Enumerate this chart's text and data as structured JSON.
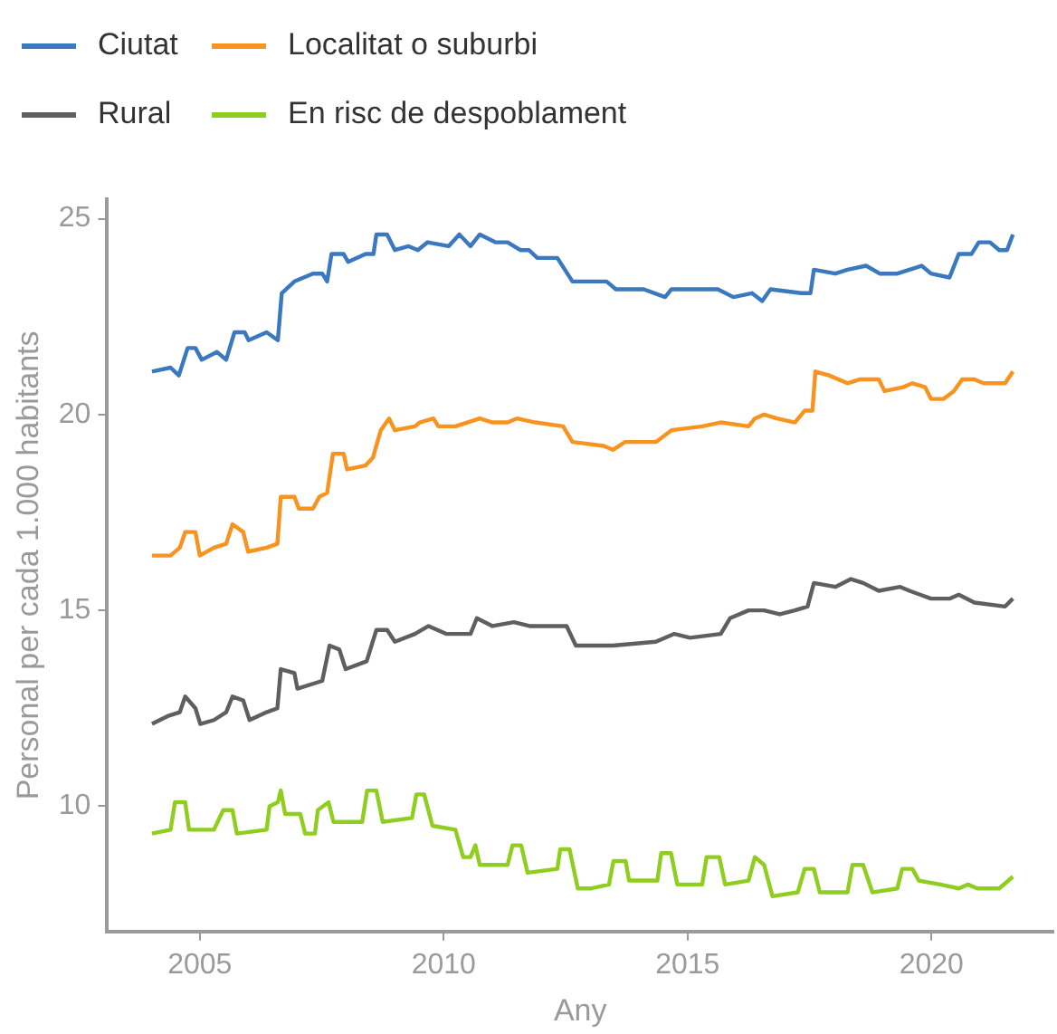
{
  "chart_data": {
    "type": "line",
    "xlabel": "Any",
    "ylabel": "Personal per cada 1.000 habitants",
    "legend": "top",
    "grid": false,
    "marker": "none",
    "xlim": [
      2003.1,
      2022.5
    ],
    "xticks": [
      2005,
      2010,
      2015,
      2020
    ],
    "ylim": [
      6.8,
      25.5
    ],
    "yticks": [
      10,
      15,
      20,
      25
    ],
    "series": [
      {
        "name": "Ciutat",
        "color": "#3a78bf",
        "x": [
          2004.02,
          2004.4,
          2004.57,
          2004.75,
          2004.91,
          2005.04,
          2005.35,
          2005.54,
          2005.71,
          2005.92,
          2006.0,
          2006.37,
          2006.6,
          2006.68,
          2006.94,
          2007.32,
          2007.51,
          2007.61,
          2007.7,
          2007.95,
          2008.04,
          2008.4,
          2008.56,
          2008.62,
          2008.84,
          2009.0,
          2009.28,
          2009.47,
          2009.67,
          2010.1,
          2010.32,
          2010.55,
          2010.74,
          2011.06,
          2011.31,
          2011.57,
          2011.75,
          2011.92,
          2012.33,
          2012.64,
          2013.34,
          2013.53,
          2014.1,
          2014.54,
          2014.67,
          2015.62,
          2015.94,
          2016.32,
          2016.53,
          2016.7,
          2017.33,
          2017.52,
          2017.59,
          2018.03,
          2018.28,
          2018.66,
          2018.94,
          2019.3,
          2019.55,
          2019.8,
          2019.99,
          2020.37,
          2020.56,
          2020.82,
          2020.97,
          2021.2,
          2021.39,
          2021.55,
          2021.67
        ],
        "values": [
          21.1,
          21.2,
          21.0,
          21.7,
          21.7,
          21.4,
          21.6,
          21.4,
          22.1,
          22.1,
          21.9,
          22.1,
          21.9,
          23.1,
          23.4,
          23.6,
          23.6,
          23.4,
          24.1,
          24.1,
          23.9,
          24.1,
          24.1,
          24.6,
          24.6,
          24.2,
          24.3,
          24.2,
          24.4,
          24.3,
          24.6,
          24.3,
          24.6,
          24.4,
          24.4,
          24.2,
          24.2,
          24.0,
          24.0,
          23.4,
          23.4,
          23.2,
          23.2,
          23.0,
          23.2,
          23.2,
          23.0,
          23.1,
          22.9,
          23.2,
          23.1,
          23.1,
          23.7,
          23.6,
          23.7,
          23.8,
          23.6,
          23.6,
          23.7,
          23.8,
          23.6,
          23.5,
          24.1,
          24.1,
          24.4,
          24.4,
          24.2,
          24.2,
          24.6
        ]
      },
      {
        "name": "Localitat o suburbi",
        "color": "#f7931e",
        "x": [
          2004.02,
          2004.4,
          2004.59,
          2004.7,
          2004.91,
          2005.0,
          2005.29,
          2005.54,
          2005.67,
          2005.89,
          2005.99,
          2006.37,
          2006.59,
          2006.66,
          2006.94,
          2007.03,
          2007.32,
          2007.45,
          2007.61,
          2007.73,
          2007.95,
          2008.02,
          2008.4,
          2008.55,
          2008.71,
          2008.88,
          2009.0,
          2009.41,
          2009.51,
          2009.79,
          2009.89,
          2010.24,
          2010.74,
          2011.0,
          2011.31,
          2011.5,
          2011.88,
          2012.45,
          2012.64,
          2013.28,
          2013.47,
          2013.72,
          2014.35,
          2014.67,
          2015.3,
          2015.68,
          2016.25,
          2016.38,
          2016.57,
          2016.83,
          2017.2,
          2017.4,
          2017.56,
          2017.62,
          2017.9,
          2018.28,
          2018.54,
          2018.92,
          2019.04,
          2019.42,
          2019.61,
          2019.87,
          2019.99,
          2020.25,
          2020.46,
          2020.63,
          2020.88,
          2021.07,
          2021.51,
          2021.67
        ],
        "values": [
          16.4,
          16.4,
          16.6,
          17.0,
          17.0,
          16.4,
          16.6,
          16.7,
          17.2,
          17.0,
          16.5,
          16.6,
          16.7,
          17.9,
          17.9,
          17.6,
          17.6,
          17.9,
          18.0,
          19.0,
          19.0,
          18.6,
          18.7,
          18.9,
          19.6,
          19.9,
          19.6,
          19.7,
          19.8,
          19.9,
          19.7,
          19.7,
          19.9,
          19.8,
          19.8,
          19.9,
          19.8,
          19.7,
          19.3,
          19.2,
          19.1,
          19.3,
          19.3,
          19.6,
          19.7,
          19.8,
          19.7,
          19.9,
          20.0,
          19.9,
          19.8,
          20.1,
          20.1,
          21.1,
          21.0,
          20.8,
          20.9,
          20.9,
          20.6,
          20.7,
          20.8,
          20.7,
          20.4,
          20.4,
          20.6,
          20.9,
          20.9,
          20.8,
          20.8,
          21.1
        ]
      },
      {
        "name": "Rural",
        "color": "#5f5f5f",
        "x": [
          2004.02,
          2004.34,
          2004.59,
          2004.7,
          2004.91,
          2005.01,
          2005.29,
          2005.54,
          2005.67,
          2005.89,
          2006.02,
          2006.37,
          2006.59,
          2006.66,
          2006.94,
          2007.0,
          2007.51,
          2007.66,
          2007.86,
          2007.99,
          2008.42,
          2008.62,
          2008.84,
          2009.0,
          2009.41,
          2009.69,
          2010.05,
          2010.3,
          2010.55,
          2010.68,
          2011.0,
          2011.44,
          2011.76,
          2012.01,
          2012.52,
          2012.71,
          2013.47,
          2014.35,
          2014.73,
          2015.05,
          2015.68,
          2015.87,
          2016.25,
          2016.57,
          2016.89,
          2017.2,
          2017.46,
          2017.59,
          2018.03,
          2018.35,
          2018.6,
          2018.92,
          2019.36,
          2019.55,
          2019.99,
          2020.37,
          2020.56,
          2020.88,
          2021.51,
          2021.67
        ],
        "values": [
          12.1,
          12.3,
          12.4,
          12.8,
          12.5,
          12.1,
          12.2,
          12.4,
          12.8,
          12.7,
          12.2,
          12.4,
          12.5,
          13.5,
          13.4,
          13.0,
          13.2,
          14.1,
          14.0,
          13.5,
          13.7,
          14.5,
          14.5,
          14.2,
          14.4,
          14.6,
          14.4,
          14.4,
          14.4,
          14.8,
          14.6,
          14.7,
          14.6,
          14.6,
          14.6,
          14.1,
          14.1,
          14.2,
          14.4,
          14.3,
          14.4,
          14.8,
          15.0,
          15.0,
          14.9,
          15.0,
          15.1,
          15.7,
          15.6,
          15.8,
          15.7,
          15.5,
          15.6,
          15.5,
          15.3,
          15.3,
          15.4,
          15.2,
          15.1,
          15.3
        ]
      },
      {
        "name": "En risc de despoblament",
        "color": "#8fce1e",
        "x": [
          2004.02,
          2004.4,
          2004.49,
          2004.7,
          2004.78,
          2005.29,
          2005.48,
          2005.67,
          2005.76,
          2006.37,
          2006.43,
          2006.6,
          2006.66,
          2006.75,
          2007.06,
          2007.16,
          2007.36,
          2007.42,
          2007.64,
          2007.74,
          2008.33,
          2008.43,
          2008.62,
          2008.75,
          2009.35,
          2009.44,
          2009.6,
          2009.77,
          2010.24,
          2010.4,
          2010.55,
          2010.65,
          2010.74,
          2011.31,
          2011.41,
          2011.59,
          2011.72,
          2012.33,
          2012.39,
          2012.58,
          2012.75,
          2013.03,
          2013.39,
          2013.48,
          2013.73,
          2013.8,
          2014.38,
          2014.46,
          2014.66,
          2014.79,
          2015.3,
          2015.39,
          2015.65,
          2015.77,
          2016.25,
          2016.38,
          2016.57,
          2016.74,
          2017.26,
          2017.4,
          2017.59,
          2017.71,
          2018.28,
          2018.38,
          2018.6,
          2018.79,
          2019.3,
          2019.4,
          2019.61,
          2019.74,
          2020.18,
          2020.56,
          2020.75,
          2020.94,
          2021.39,
          2021.67
        ],
        "values": [
          9.3,
          9.4,
          10.1,
          10.1,
          9.4,
          9.4,
          9.9,
          9.9,
          9.3,
          9.4,
          10.0,
          10.1,
          10.4,
          9.8,
          9.8,
          9.3,
          9.3,
          9.9,
          10.1,
          9.6,
          9.6,
          10.4,
          10.4,
          9.6,
          9.7,
          10.3,
          10.3,
          9.5,
          9.4,
          8.7,
          8.7,
          9.0,
          8.5,
          8.5,
          9.0,
          9.0,
          8.3,
          8.4,
          8.9,
          8.9,
          7.9,
          7.9,
          8.0,
          8.6,
          8.6,
          8.1,
          8.1,
          8.8,
          8.8,
          8.0,
          8.0,
          8.7,
          8.7,
          8.0,
          8.1,
          8.7,
          8.5,
          7.7,
          7.8,
          8.4,
          8.4,
          7.8,
          7.8,
          8.5,
          8.5,
          7.8,
          7.9,
          8.4,
          8.4,
          8.1,
          8.0,
          7.9,
          8.0,
          7.9,
          7.9,
          8.2
        ]
      }
    ]
  }
}
